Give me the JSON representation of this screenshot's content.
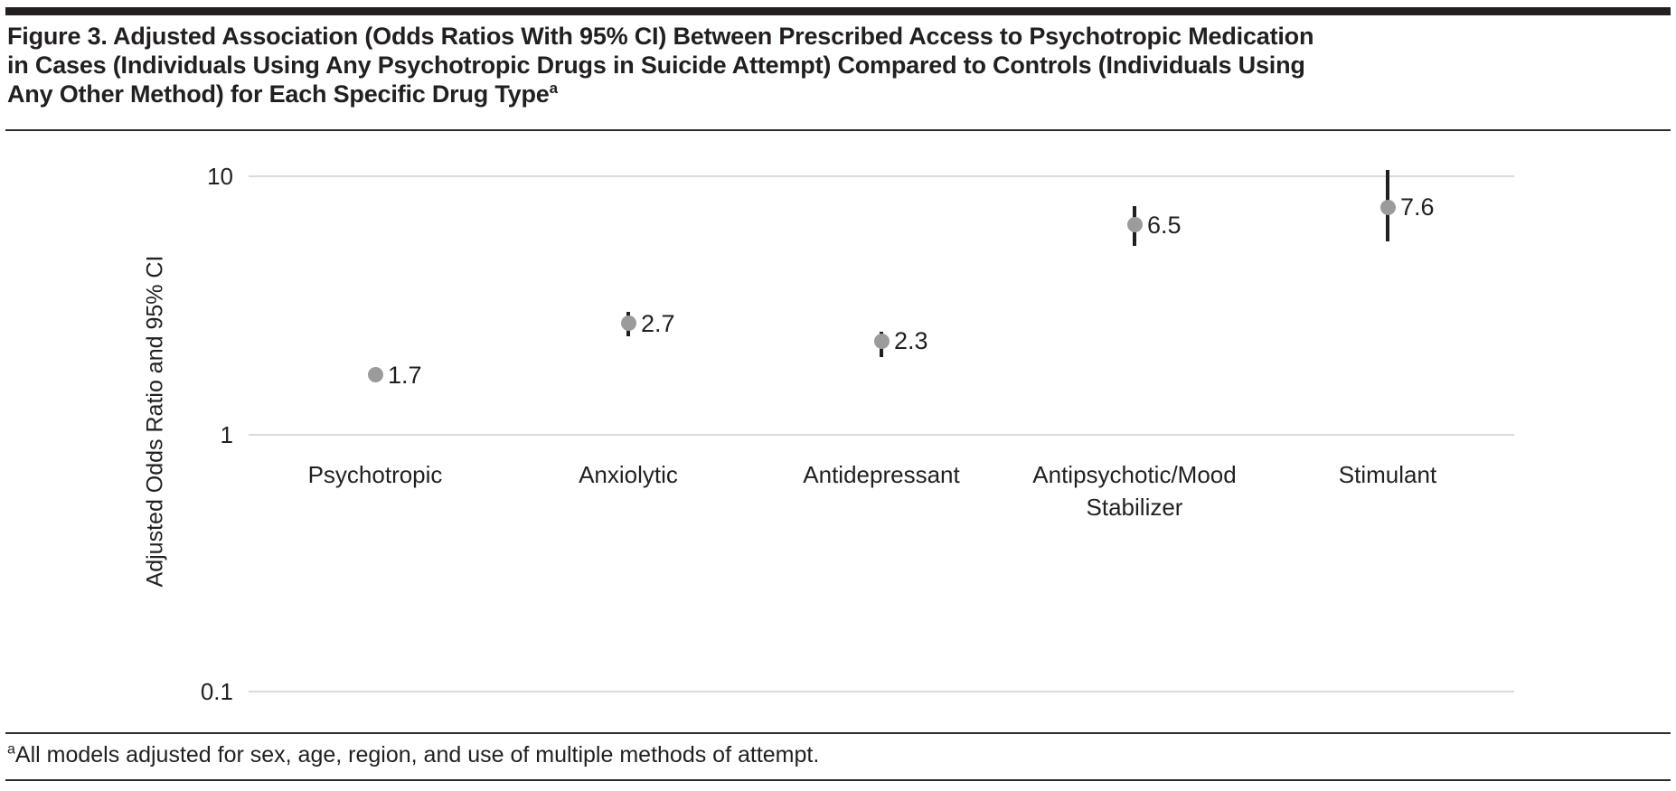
{
  "figure": {
    "title_lines": [
      "Figure 3. Adjusted Association (Odds Ratios With 95% CI) Between Prescribed Access to Psychotropic Medication",
      "in Cases (Individuals Using Any Psychotropic Drugs in Suicide Attempt) Compared to Controls (Individuals Using",
      "Any Other Method) for Each Specific Drug Type"
    ],
    "title_superscript": "a",
    "footnote_superscript": "a",
    "footnote_text": "All models adjusted for sex, age, region, and use of multiple methods of attempt."
  },
  "chart_data": {
    "type": "scatter",
    "scale": "log10",
    "title": "",
    "xlabel": "",
    "ylabel": "Adjusted Odds Ratio and 95% CI",
    "ylim": [
      0.1,
      10
    ],
    "yticks": [
      "10",
      "1",
      "0.1"
    ],
    "grid": true,
    "legend": "none",
    "categories": [
      "Psychotropic",
      "Anxiolytic",
      "Antidepressant",
      "Antipsychotic/Mood\nStabilizer",
      "Stimulant"
    ],
    "points": [
      {
        "category": "Psychotropic",
        "odds_ratio": 1.7,
        "label": "1.7",
        "ci_low_est": 1.6,
        "ci_high_est": 1.8
      },
      {
        "category": "Anxiolytic",
        "odds_ratio": 2.7,
        "label": "2.7",
        "ci_low_est": 2.4,
        "ci_high_est": 3.0
      },
      {
        "category": "Antidepressant",
        "odds_ratio": 2.3,
        "label": "2.3",
        "ci_low_est": 2.0,
        "ci_high_est": 2.5
      },
      {
        "category": "Antipsychotic/Mood Stabilizer",
        "odds_ratio": 6.5,
        "label": "6.5",
        "ci_low_est": 5.4,
        "ci_high_est": 7.7
      },
      {
        "category": "Stimulant",
        "odds_ratio": 7.6,
        "label": "7.6",
        "ci_low_est": 5.6,
        "ci_high_est": 10.6
      }
    ],
    "colors": {
      "dot": "#9b9b9b",
      "error_bar": "#1f1f1f",
      "gridline": "#dadada",
      "text": "#231f20",
      "top_bar": "#231f20",
      "rule": "#2b2b2b"
    }
  }
}
